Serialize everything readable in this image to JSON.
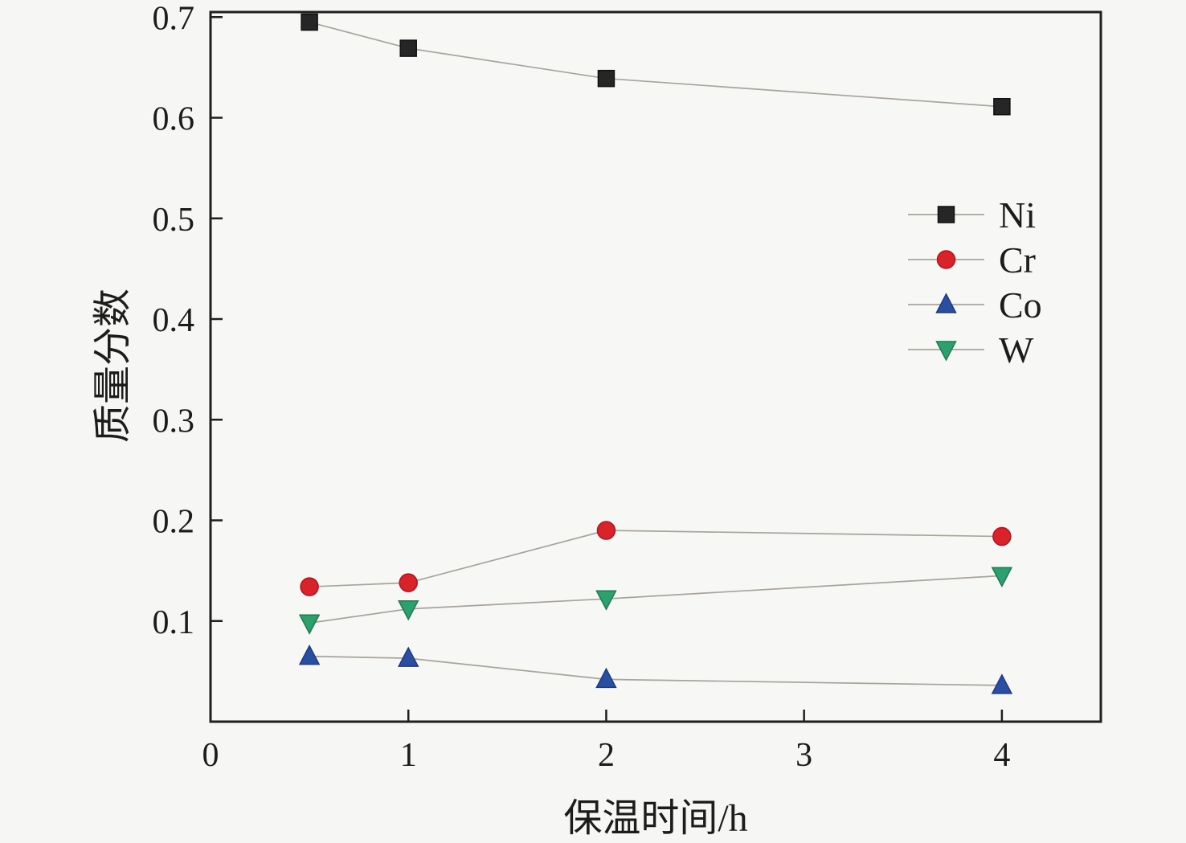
{
  "chart_data": {
    "type": "line",
    "title": "",
    "xlabel": "保温时间/h",
    "ylabel": "质量分数",
    "x": [
      0.5,
      1,
      2,
      4
    ],
    "series": [
      {
        "name": "Ni",
        "marker": "square",
        "color": "#262626",
        "edge": "#111111",
        "values": [
          0.695,
          0.669,
          0.639,
          0.611
        ]
      },
      {
        "name": "Cr",
        "marker": "circle",
        "color": "#d9232b",
        "edge": "#b5121f",
        "values": [
          0.134,
          0.138,
          0.19,
          0.184
        ]
      },
      {
        "name": "Co",
        "marker": "triangle-up",
        "color": "#2a4fa2",
        "edge": "#1b3a85",
        "values": [
          0.065,
          0.063,
          0.042,
          0.036
        ]
      },
      {
        "name": "W",
        "marker": "triangle-down",
        "color": "#2da06e",
        "edge": "#1e7a52",
        "values": [
          0.098,
          0.112,
          0.122,
          0.145
        ]
      }
    ],
    "xlim": [
      0,
      4.5
    ],
    "ylim": [
      0,
      0.705
    ],
    "xticks": [
      0,
      1,
      2,
      3,
      4
    ],
    "yticks": [
      0.1,
      0.2,
      0.3,
      0.4,
      0.5,
      0.6,
      0.7
    ],
    "grid": false,
    "legend_position": "center-right",
    "frame_color": "#1f1f1f",
    "line_color": "#a9a39c",
    "plot_bg": "#f7f7f5"
  }
}
